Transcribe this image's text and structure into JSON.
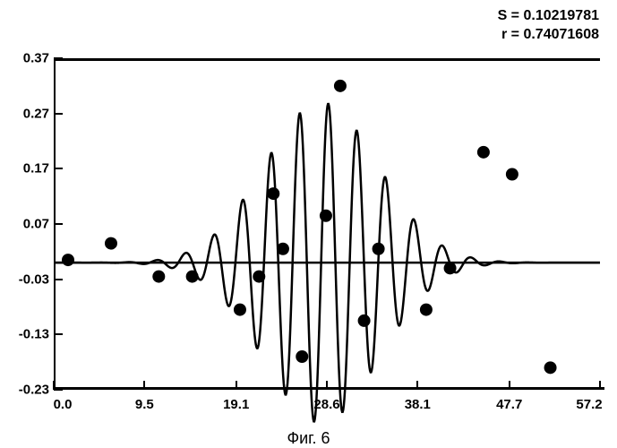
{
  "stats": {
    "s_label": "S = 0.10219781",
    "r_label": "r = 0.74071608"
  },
  "caption": "Фиг. 6",
  "chart": {
    "type": "scatter_with_curve",
    "xlim": [
      0.0,
      57.2
    ],
    "ylim": [
      -0.23,
      0.37
    ],
    "xtick_values": [
      0.0,
      9.5,
      19.1,
      28.6,
      38.1,
      47.7,
      57.2
    ],
    "xtick_labels": [
      "0.0",
      "9.5",
      "19.1",
      "28.6",
      "38.1",
      "47.7",
      "57.2"
    ],
    "ytick_values": [
      -0.23,
      -0.13,
      -0.03,
      0.07,
      0.17,
      0.27,
      0.37
    ],
    "ytick_labels": [
      "-0.23",
      "-0.13",
      "-0.03",
      "0.07",
      "0.17",
      "0.27",
      "0.37"
    ],
    "baseline_y": 0.0,
    "background_color": "#ffffff",
    "axis_color": "#000000",
    "label_fontsize": 15,
    "label_fontweight": "bold",
    "points": [
      {
        "x": 1.5,
        "y": 0.005
      },
      {
        "x": 6.0,
        "y": 0.035
      },
      {
        "x": 11.0,
        "y": -0.025
      },
      {
        "x": 14.5,
        "y": -0.025
      },
      {
        "x": 19.5,
        "y": -0.085
      },
      {
        "x": 21.5,
        "y": -0.025
      },
      {
        "x": 23.0,
        "y": 0.125
      },
      {
        "x": 24.0,
        "y": 0.025
      },
      {
        "x": 26.0,
        "y": -0.17
      },
      {
        "x": 28.5,
        "y": 0.085
      },
      {
        "x": 30.0,
        "y": 0.32
      },
      {
        "x": 32.5,
        "y": -0.105
      },
      {
        "x": 34.0,
        "y": 0.025
      },
      {
        "x": 39.0,
        "y": -0.085
      },
      {
        "x": 41.5,
        "y": -0.01
      },
      {
        "x": 45.0,
        "y": 0.2
      },
      {
        "x": 48.0,
        "y": 0.16
      },
      {
        "x": 52.0,
        "y": -0.19
      }
    ],
    "point_radius": 7,
    "point_color": "#000000",
    "curve": {
      "color": "#000000",
      "width": 2.5,
      "baseline": 0.0,
      "wave_center": 28.0,
      "wave_sigma": 6.0,
      "wave_amp": 0.29,
      "wave_freq": 2.1
    }
  }
}
